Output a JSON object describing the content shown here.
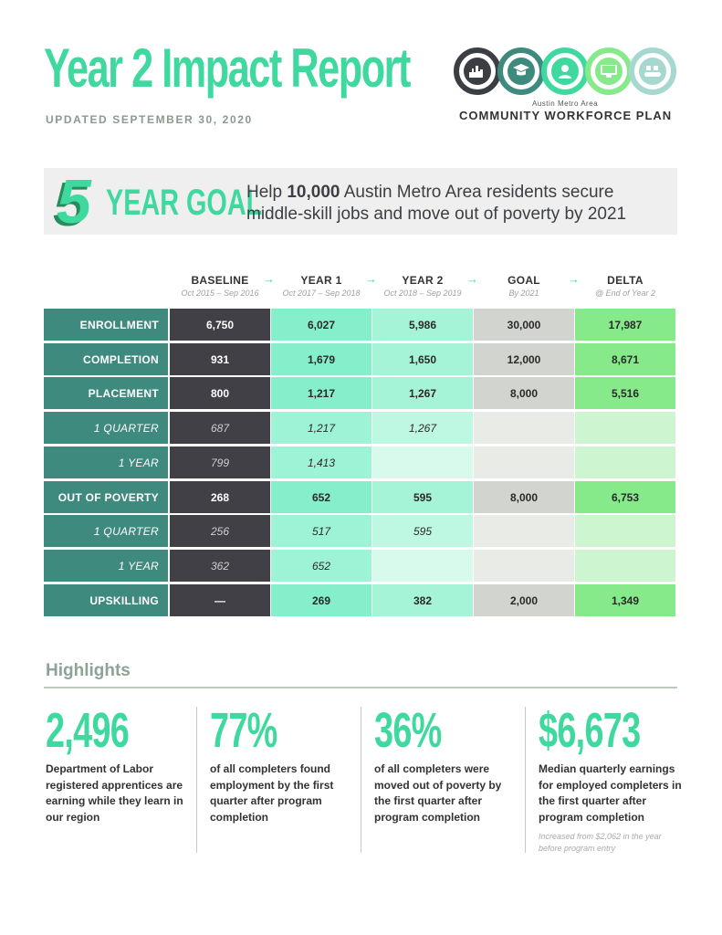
{
  "header": {
    "title": "Year 2 Impact Report",
    "updated": "UPDATED SEPTEMBER 30, 2020"
  },
  "logo": {
    "subtitle": "Austin Metro Area",
    "name": "COMMUNITY WORKFORCE PLAN",
    "icons": [
      {
        "icon": "city-skyline-icon",
        "color": "#3b3f44"
      },
      {
        "icon": "graduate-icon",
        "color": "#3f8a7e"
      },
      {
        "icon": "worker-icon",
        "color": "#3fd9a0"
      },
      {
        "icon": "computer-user-icon",
        "color": "#86ea8a"
      },
      {
        "icon": "conveyor-icon",
        "color": "#a6d8d0"
      }
    ]
  },
  "goal": {
    "number": "5",
    "label": "YEAR GOAL",
    "text_pre": "Help ",
    "text_bold": "10,000",
    "text_post": " Austin Metro Area residents secure middle-skill jobs and move out of poverty by 2021"
  },
  "table": {
    "columns": [
      {
        "heading": "BASELINE",
        "sub": "Oct 2015 – Sep 2016"
      },
      {
        "heading": "YEAR 1",
        "sub": "Oct 2017 – Sep 2018"
      },
      {
        "heading": "YEAR 2",
        "sub": "Oct 2018 – Sep 2019"
      },
      {
        "heading": "GOAL",
        "sub": "By 2021"
      },
      {
        "heading": "DELTA",
        "sub": "@ End of Year 2"
      }
    ],
    "arrow": "→",
    "rows": [
      {
        "label": "ENROLLMENT",
        "sub": false,
        "values": [
          "6,750",
          "6,027",
          "5,986",
          "30,000",
          "17,987"
        ]
      },
      {
        "label": "COMPLETION",
        "sub": false,
        "values": [
          "931",
          "1,679",
          "1,650",
          "12,000",
          "8,671"
        ]
      },
      {
        "label": "PLACEMENT",
        "sub": false,
        "values": [
          "800",
          "1,217",
          "1,267",
          "8,000",
          "5,516"
        ]
      },
      {
        "label": "1 QUARTER",
        "sub": true,
        "values": [
          "687",
          "1,217",
          "1,267",
          "",
          ""
        ]
      },
      {
        "label": "1 YEAR",
        "sub": true,
        "values": [
          "799",
          "1,413",
          "",
          "",
          ""
        ]
      },
      {
        "label": "OUT OF POVERTY",
        "sub": false,
        "values": [
          "268",
          "652",
          "595",
          "8,000",
          "6,753"
        ]
      },
      {
        "label": "1 QUARTER",
        "sub": true,
        "values": [
          "256",
          "517",
          "595",
          "",
          ""
        ]
      },
      {
        "label": "1 YEAR",
        "sub": true,
        "values": [
          "362",
          "652",
          "",
          "",
          ""
        ]
      },
      {
        "label": "UPSKILLING",
        "sub": false,
        "values": [
          "—",
          "269",
          "382",
          "2,000",
          "1,349"
        ]
      }
    ]
  },
  "highlights": {
    "title": "Highlights",
    "items": [
      {
        "number": "2,496",
        "text": "Department of Labor registered apprentices are earning while they learn in our region",
        "note": ""
      },
      {
        "number": "77%",
        "text": "of all completers found employment by the first quarter after program completion",
        "note": ""
      },
      {
        "number": "36%",
        "text": "of all completers were moved out of poverty by the first quarter after program completion",
        "note": ""
      },
      {
        "number": "$6,673",
        "text": "Median quarterly earnings for employed completers in the first quarter after program completion",
        "note": "Increased from $2,062 in the year before program entry"
      }
    ]
  }
}
